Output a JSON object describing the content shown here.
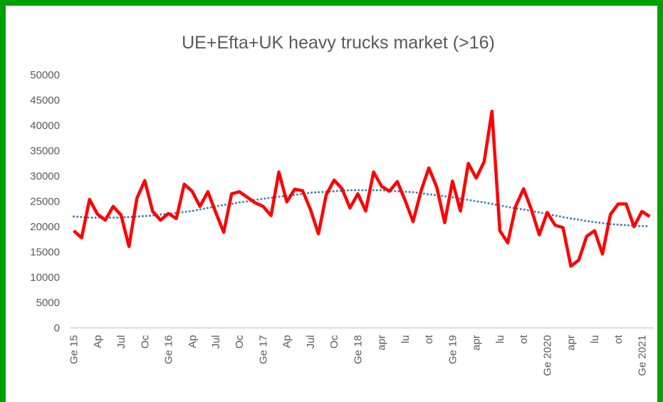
{
  "chart_data": {
    "type": "line",
    "title": "UE+Efta+UK heavy trucks market (>16)",
    "categories": [
      "Ge 15",
      null,
      null,
      "Ap",
      null,
      null,
      "Jul",
      null,
      null,
      "Oc",
      null,
      null,
      "Ge 16",
      null,
      null,
      "Ap",
      null,
      null,
      "Jul",
      null,
      null,
      "Oc",
      null,
      null,
      "Ge 17",
      null,
      null,
      "Ap",
      null,
      null,
      "Jul",
      null,
      null,
      "Oc",
      null,
      null,
      "Ge 18",
      null,
      null,
      "apr",
      null,
      null,
      "lu",
      null,
      null,
      "ot",
      null,
      null,
      "Ge 19",
      null,
      null,
      "apr",
      null,
      null,
      "lu",
      null,
      null,
      "ot",
      null,
      null,
      "Ge 2020",
      null,
      null,
      "apr",
      null,
      null,
      "lu",
      null,
      null,
      "ot",
      null,
      null,
      "Ge 2021",
      null
    ],
    "series": [
      {
        "color": "#ff0000",
        "values": [
          19200,
          17800,
          25400,
          22500,
          21300,
          24000,
          22300,
          16100,
          25600,
          29100,
          23000,
          21300,
          22600,
          21600,
          28400,
          27000,
          24000,
          26900,
          22800,
          18900,
          26500,
          26900,
          25800,
          24700,
          24000,
          22200,
          30800,
          24900,
          27400,
          27100,
          23400,
          18600,
          26300,
          29200,
          27500,
          23700,
          26500,
          23100,
          30800,
          28000,
          27000,
          28900,
          25200,
          21000,
          27000,
          31600,
          27800,
          20800,
          29000,
          23100,
          32500,
          29600,
          32800,
          42800,
          19200,
          16800,
          24000,
          27500,
          23400,
          18400,
          22800,
          20300,
          19800,
          12200,
          13400,
          18100,
          19200,
          14600,
          22400,
          24500,
          24500,
          20000,
          23000,
          22000
        ]
      },
      {
        "color": "#4a7ebb",
        "dotted": true,
        "values": [
          22000,
          21900,
          21800,
          21800,
          21800,
          21800,
          21800,
          21900,
          22000,
          22100,
          22200,
          22400,
          22500,
          22700,
          22900,
          23100,
          23400,
          23700,
          24000,
          24300,
          24500,
          24800,
          25000,
          25300,
          25500,
          25700,
          25900,
          26100,
          26300,
          26500,
          26700,
          26800,
          26900,
          27000,
          27100,
          27200,
          27200,
          27200,
          27200,
          27200,
          27100,
          27000,
          26900,
          26800,
          26600,
          26400,
          26200,
          26000,
          25800,
          25500,
          25300,
          25000,
          24800,
          24500,
          24200,
          23900,
          23600,
          23400,
          23100,
          22800,
          22500,
          22200,
          21900,
          21600,
          21400,
          21100,
          20900,
          20700,
          20500,
          20400,
          20300,
          20200,
          20100,
          20100
        ]
      }
    ],
    "ylim": [
      0,
      50000
    ],
    "yticks": [
      0,
      5000,
      10000,
      15000,
      20000,
      25000,
      30000,
      35000,
      40000,
      45000,
      50000
    ],
    "grid": false
  }
}
